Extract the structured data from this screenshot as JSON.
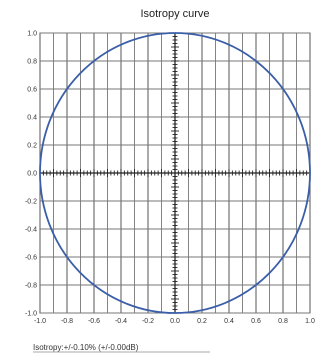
{
  "chart_data": {
    "type": "line",
    "title": "Isotropy curve",
    "xlabel": "",
    "ylabel": "",
    "xlim": [
      -1.0,
      1.0
    ],
    "ylim": [
      -1.0,
      1.0
    ],
    "grid": true,
    "x_ticks": [
      -1.0,
      -0.8,
      -0.6,
      -0.4,
      -0.2,
      0.0,
      0.2,
      0.4,
      0.6,
      0.8,
      1.0
    ],
    "y_ticks": [
      1.0,
      0.8,
      0.6,
      0.4,
      0.2,
      0.0,
      -0.2,
      -0.4,
      -0.6,
      -0.8,
      -1.0
    ],
    "x_tick_labels": [
      "-1.0",
      "-0.8",
      "-0.6",
      "-0.4",
      "-0.2",
      "0.0",
      "0.2",
      "0.4",
      "0.6",
      "0.8",
      "1.0"
    ],
    "y_tick_labels": [
      "1.0",
      "0.8",
      "0.6",
      "0.4",
      "0.2",
      "0.0",
      "-0.2",
      "-0.4",
      "-0.6",
      "-0.8",
      "-1.0"
    ],
    "series": [
      {
        "shape": "circle",
        "center": [
          0,
          0
        ],
        "radius": 1.0,
        "color": "#3a5ea8"
      }
    ],
    "annotation": "Isotropy:+/-0.10% (+/-0.00dB)"
  }
}
